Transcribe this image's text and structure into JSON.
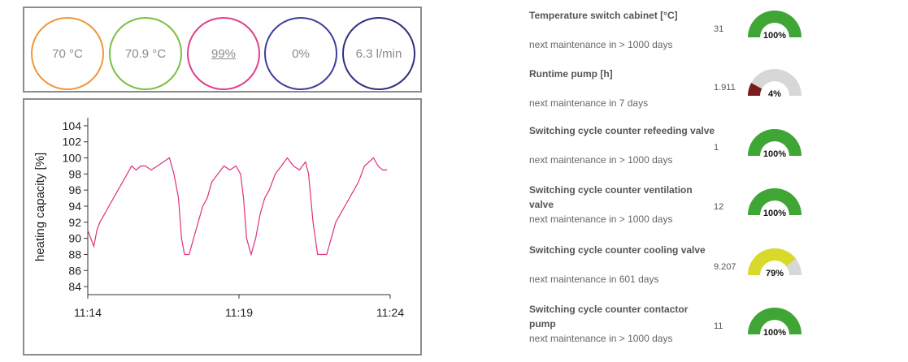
{
  "kpis": [
    {
      "value": "70 °C",
      "color": "#f0973a",
      "underline": false
    },
    {
      "value": "70.9 °C",
      "color": "#7bc043",
      "underline": false
    },
    {
      "value": "99%",
      "color": "#e0408a",
      "underline": true
    },
    {
      "value": "0%",
      "color": "#3f3f9a",
      "underline": false
    },
    {
      "value": "6.3 l/min",
      "color": "#2f2f80",
      "underline": false
    }
  ],
  "chart_data": {
    "type": "line",
    "ylabel": "heating capacity [%]",
    "xlabel": "",
    "title": "",
    "x_ticks": [
      "11:14",
      "11:19",
      "11:24"
    ],
    "y_ticks": [
      84,
      86,
      88,
      90,
      92,
      94,
      96,
      98,
      100,
      102,
      104
    ],
    "ylim": [
      83,
      105
    ],
    "xlim": [
      0,
      10
    ],
    "color": "#e0307f",
    "series": [
      {
        "x": [
          0.0,
          0.1,
          0.2,
          0.3,
          0.4,
          0.55,
          0.7,
          0.85,
          1.0,
          1.15,
          1.3,
          1.45,
          1.6,
          1.75,
          1.9,
          2.1,
          2.3,
          2.5,
          2.7,
          2.85,
          3.0,
          3.1,
          3.2,
          3.35,
          3.5,
          3.65,
          3.8,
          3.95,
          4.1,
          4.3,
          4.5,
          4.7,
          4.9,
          5.05,
          5.15,
          5.25,
          5.4,
          5.55,
          5.7,
          5.85,
          6.0,
          6.2,
          6.4,
          6.6,
          6.8,
          7.0,
          7.1,
          7.2,
          7.3,
          7.45,
          7.6,
          7.75,
          7.9,
          8.05,
          8.2,
          8.35,
          8.5,
          8.65,
          8.8,
          8.95,
          9.05,
          9.15,
          9.3,
          9.45,
          9.6,
          9.75,
          9.9
        ],
        "y": [
          91,
          90,
          89,
          91,
          92,
          93,
          94,
          95,
          96,
          97,
          98,
          99,
          98.5,
          99,
          99,
          98.5,
          99,
          99.5,
          100,
          98,
          95,
          90,
          88,
          88,
          90,
          92,
          94,
          95,
          97,
          98,
          99,
          98.5,
          99,
          98,
          95,
          90,
          88,
          90,
          93,
          95,
          96,
          98,
          99,
          100,
          99,
          98.5,
          99,
          99.5,
          98,
          92,
          88,
          88,
          88,
          90,
          92,
          93,
          94,
          95,
          96,
          97,
          98,
          99,
          99.5,
          100,
          99,
          98.5,
          98.5
        ]
      }
    ]
  },
  "maintenance": [
    {
      "title": "Temperature switch cabinet [°C]",
      "subtitle": "next maintenance in > 1000 days",
      "count": "31",
      "percent": 100,
      "percent_label": "100%",
      "color": "#3fa535"
    },
    {
      "title": "Runtime pump [h]",
      "subtitle": "next maintenance in 7 days",
      "count": "1.911",
      "percent": 4,
      "percent_label": "4%",
      "color": "#d03c3c"
    },
    {
      "title": "Switching cycle counter refeeding valve",
      "subtitle": "next maintenance in > 1000 days",
      "count": "1",
      "percent": 100,
      "percent_label": "100%",
      "color": "#3fa535"
    },
    {
      "title": "Switching cycle counter ventilation valve",
      "subtitle": "next maintenance in > 1000 days",
      "count": "12",
      "percent": 100,
      "percent_label": "100%",
      "color": "#3fa535"
    },
    {
      "title": "Switching cycle counter cooling valve",
      "subtitle": "next maintenance in 601 days",
      "count": "9.207",
      "percent": 79,
      "percent_label": "79%",
      "color": "#d9d92a"
    },
    {
      "title": "Switching cycle counter contactor pump",
      "subtitle": "next maintenance in > 1000 days",
      "count": "11",
      "percent": 100,
      "percent_label": "100%",
      "color": "#3fa535"
    }
  ]
}
